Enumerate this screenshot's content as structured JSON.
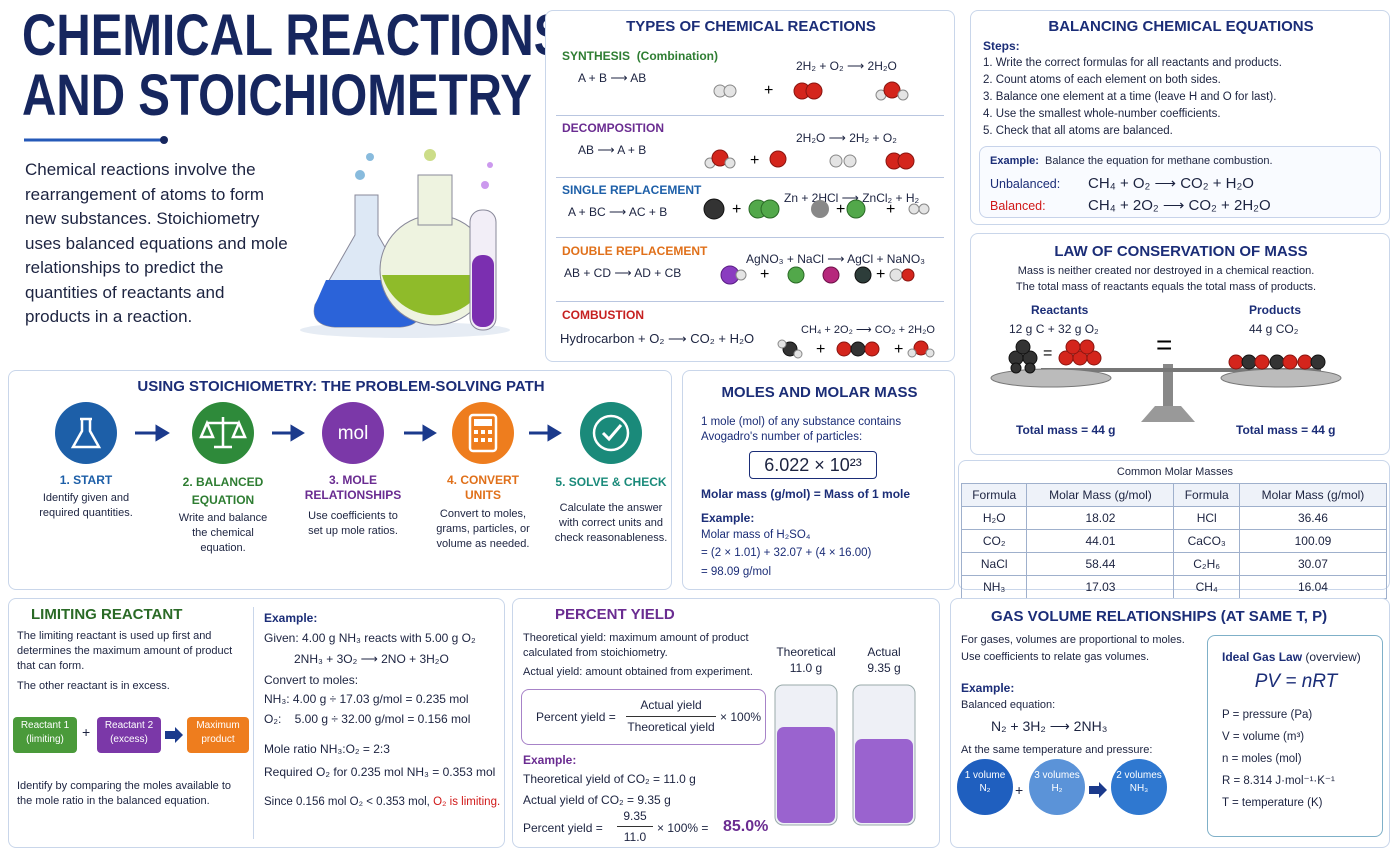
{
  "header": {
    "title_line1": "CHEMICAL REACTIONS",
    "title_line2": "AND STOICHIOMETRY",
    "intro": "Chemical reactions involve the rearrangement of atoms to form new substances. Stoichiometry uses balanced equations and mole relationships to predict the quantities of reactants and products in a reaction."
  },
  "symbols": {
    "plus": "+",
    "equals": "="
  },
  "types": {
    "title": "TYPES OF CHEMICAL REACTIONS",
    "items": [
      {
        "name": "SYNTHESIS",
        "note": "(Combination)",
        "general": "A + B ⟶ AB",
        "example": "2H₂ + O₂ ⟶ 2H₂O"
      },
      {
        "name": "DECOMPOSITION",
        "general": "AB ⟶ A + B",
        "example": "2H₂O ⟶ 2H₂ + O₂"
      },
      {
        "name": "SINGLE REPLACEMENT",
        "general": "A + BC ⟶ AC + B",
        "example": "Zn + 2HCl ⟶ ZnCl₂ + H₂"
      },
      {
        "name": "DOUBLE REPLACEMENT",
        "general": "AB + CD ⟶ AD + CB",
        "example": "AgNO₃ + NaCl ⟶ AgCl + NaNO₃"
      },
      {
        "name": "COMBUSTION",
        "general": "Hydrocarbon + O₂ ⟶  CO₂ + H₂O",
        "example": "CH₄ + 2O₂ ⟶ CO₂ + 2H₂O"
      }
    ]
  },
  "balancing": {
    "title": "BALANCING CHEMICAL EQUATIONS",
    "steps_label": "Steps:",
    "steps": [
      "1. Write the correct formulas for all reactants and products.",
      "2. Count atoms of each element on both sides.",
      "3. Balance one element at a time (leave H and O for last).",
      "4. Use the smallest whole-number coefficients.",
      "5. Check that all atoms are balanced."
    ],
    "example_label": "Example:",
    "example_text": "Balance the equation for methane combustion.",
    "rows": [
      {
        "label": "Unbalanced:",
        "equation": "CH₄ + O₂ ⟶ CO₂ + H₂O"
      },
      {
        "label": "Balanced:",
        "equation": "CH₄ + 2O₂ ⟶ CO₂ + 2H₂O"
      }
    ]
  },
  "conservation": {
    "title": "LAW OF CONSERVATION OF MASS",
    "lines": [
      "Mass is neither created nor destroyed in a chemical reaction.",
      "The total mass of reactants equals the total mass of products."
    ],
    "reactants_label": "Reactants",
    "reactants": "12 g C  +  32 g O₂",
    "products_label": "Products",
    "products": "44 g CO₂",
    "total_left": "Total mass = 44 g",
    "total_right": "Total mass = 44 g"
  },
  "molar_table": {
    "caption": "Common Molar Masses",
    "header": [
      "Formula",
      "Molar Mass (g/mol)",
      "Formula",
      "Molar Mass (g/mol)"
    ],
    "rows": [
      [
        "H₂O",
        "18.02",
        "HCl",
        "36.46"
      ],
      [
        "CO₂",
        "44.01",
        "CaCO₃",
        "100.09"
      ],
      [
        "NaCl",
        "58.44",
        "C₂H₆",
        "30.07"
      ],
      [
        "NH₃",
        "17.03",
        "CH₄",
        "16.04"
      ]
    ]
  },
  "path": {
    "title": "USING STOICHIOMETRY: THE PROBLEM-SOLVING PATH",
    "mol_icon": "mol",
    "steps": [
      {
        "title": "1. START",
        "desc": "Identify given and required quantities."
      },
      {
        "title": "2. BALANCED EQUATION",
        "desc": "Write and balance the chemical equation."
      },
      {
        "title": "3. MOLE RELATIONSHIPS",
        "desc": "Use coefficients to set up mole ratios."
      },
      {
        "title": "4. CONVERT UNITS",
        "desc": "Convert to moles, grams, particles, or volume as needed."
      },
      {
        "title": "5. SOLVE & CHECK",
        "desc": "Calculate the answer with correct units and check reasonableness."
      }
    ]
  },
  "moles": {
    "title": "MOLES AND MOLAR MASS",
    "intro": "1 mole (mol) of any substance contains Avogadro's number of particles:",
    "avogadro": "6.022 × 10²³",
    "molar_def": "Molar mass (g/mol) = Mass of 1 mole",
    "example_label": "Example:",
    "example_lines": [
      "Molar mass of H₂SO₄",
      "= (2 × 1.01) + 32.07 + (4 × 16.00)",
      "= 98.09 g/mol"
    ]
  },
  "limiting": {
    "title": "LIMITING REACTANT",
    "desc": [
      "The limiting reactant is used up first and determines the maximum amount of product that can form.",
      "The other reactant is in excess."
    ],
    "flow": [
      "Reactant 1 (limiting)",
      "Reactant 2 (excess)",
      "Maximum product"
    ],
    "footer": "Identify by comparing the moles available to the mole ratio in the balanced equation.",
    "example_label": "Example:",
    "lines": [
      "Given:  4.00 g NH₃ reacts with 5.00 g O₂",
      "2NH₃ + 3O₂ ⟶ 2NO + 3H₂O",
      "Convert to moles:",
      "NH₃:  4.00 g ÷ 17.03 g/mol = 0.235 mol",
      "O₂:    5.00 g ÷ 32.00 g/mol = 0.156 mol",
      "Mole ratio NH₃:O₂ = 2:3",
      "Required O₂ for 0.235 mol NH₃ = 0.353 mol",
      "Since 0.156 mol O₂ < 0.353 mol, "
    ],
    "conclusion": "O₂ is limiting."
  },
  "yield": {
    "title": "PERCENT YIELD",
    "desc": [
      "Theoretical yield: maximum amount of product calculated from stoichiometry.",
      "Actual yield: amount obtained from experiment."
    ],
    "formula_label": "Percent yield =",
    "numerator": "Actual yield",
    "denominator": "Theoretical yield",
    "times": "× 100%",
    "example_label": "Example:",
    "example_lines": [
      "Theoretical yield of CO₂ = 11.0 g",
      "Actual yield of CO₂ = 9.35 g"
    ],
    "calc_label": "Percent yield =",
    "calc_num": "9.35",
    "calc_den": "11.0",
    "calc_times": "× 100% =",
    "result": "85.0%",
    "beakers": [
      {
        "label": "Theoretical",
        "amount": "11.0 g"
      },
      {
        "label": "Actual",
        "amount": "9.35 g"
      }
    ]
  },
  "gas": {
    "title": "GAS VOLUME RELATIONSHIPS (AT SAME T, P)",
    "lines": [
      "For gases, volumes are proportional to moles.",
      "Use coefficients to relate gas volumes."
    ],
    "example_label": "Example:",
    "balanced_label": "Balanced equation:",
    "equation": "N₂ + 3H₂ ⟶ 2NH₃",
    "condition": "At the same temperature and pressure:",
    "volumes": [
      {
        "amount": "1 volume",
        "gas": "N₂"
      },
      {
        "amount": "3 volumes",
        "gas": "H₂"
      },
      {
        "amount": "2 volumes",
        "gas": "NH₃"
      }
    ],
    "ideal_title": "Ideal Gas Law",
    "ideal_note": "(overview)",
    "ideal_eq": "PV = nRT",
    "vars": [
      "P = pressure (Pa)",
      "V = volume (m³)",
      "n = moles (mol)",
      "R = 8.314 J·mol⁻¹·K⁻¹",
      "T = temperature (K)"
    ]
  }
}
